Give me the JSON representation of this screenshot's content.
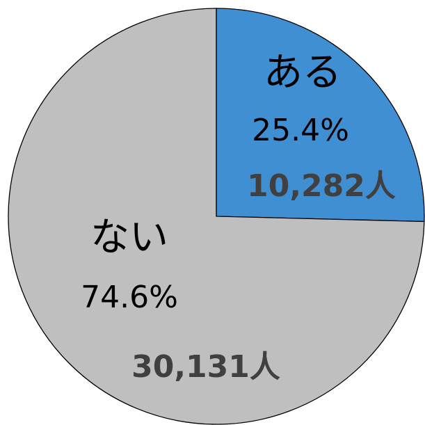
{
  "chart_data": {
    "type": "pie",
    "categories": [
      "ある",
      "ない"
    ],
    "values": [
      25.4,
      74.6
    ],
    "value_labels": [
      "25.4%",
      "74.6%"
    ],
    "counts": [
      10282,
      30131
    ],
    "count_labels": [
      "10,282人",
      "30,131人"
    ],
    "colors": [
      "#3f8fd2",
      "#bfbfbf"
    ]
  }
}
